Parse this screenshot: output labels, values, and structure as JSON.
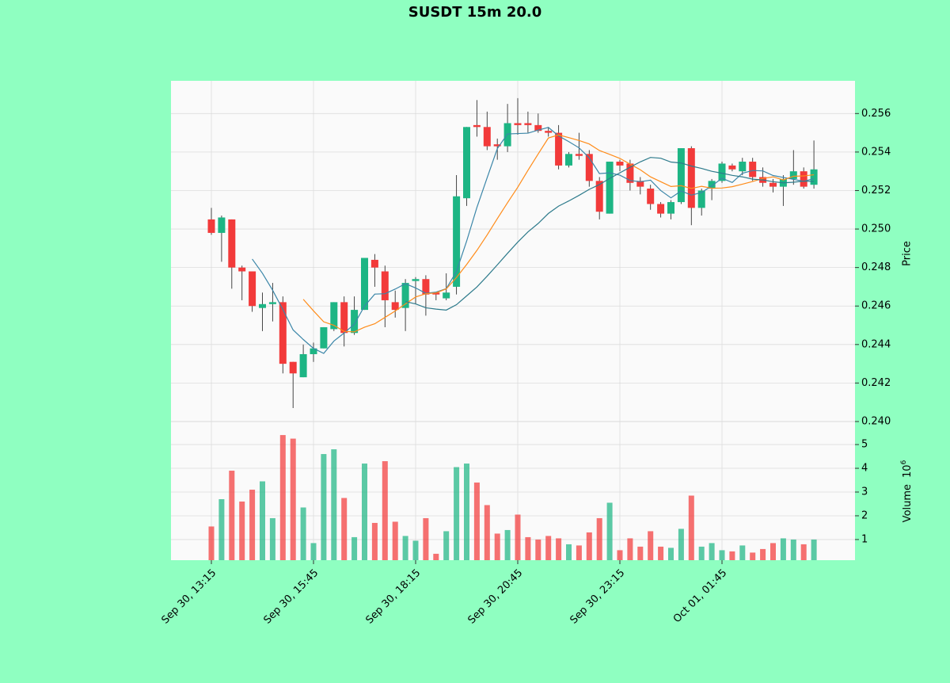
{
  "chart_data": {
    "type": "candlestick",
    "title": "SUSDT 15m 20.0",
    "ylabel": "Price",
    "grid": true,
    "up_color": "#1db584",
    "down_color": "#f23a3a",
    "categories": [
      "Sep 30, 13:15",
      null,
      null,
      null,
      null,
      null,
      null,
      null,
      null,
      null,
      "Sep 30, 15:45",
      null,
      null,
      null,
      null,
      null,
      null,
      null,
      null,
      null,
      "Sep 30, 18:15",
      null,
      null,
      null,
      null,
      null,
      null,
      null,
      null,
      null,
      "Sep 30, 20:45",
      null,
      null,
      null,
      null,
      null,
      null,
      null,
      null,
      null,
      "Sep 30, 23:15",
      null,
      null,
      null,
      null,
      null,
      null,
      null,
      null,
      null,
      "Oct 01, 01:45",
      null,
      null,
      null,
      null,
      null,
      null,
      null,
      null,
      null
    ],
    "open": [
      0.2505,
      0.2498,
      0.2505,
      0.248,
      0.2478,
      0.2459,
      0.2461,
      0.2462,
      0.2431,
      0.2423,
      0.2435,
      0.2438,
      0.2448,
      0.2462,
      0.2446,
      0.2458,
      0.2484,
      0.2478,
      0.2462,
      0.2459,
      0.2473,
      0.2474,
      0.2467,
      0.2464,
      0.247,
      0.2516,
      0.2554,
      0.2553,
      0.2544,
      0.2543,
      0.2555,
      0.2555,
      0.2554,
      0.2551,
      0.255,
      0.2533,
      0.2539,
      0.2539,
      0.2525,
      0.2508,
      0.2535,
      0.2534,
      0.2525,
      0.2521,
      0.2513,
      0.2508,
      0.2514,
      0.2542,
      0.2511,
      0.2521,
      0.2525,
      0.2533,
      0.253,
      0.2535,
      0.2527,
      0.2524,
      0.2522,
      0.2526,
      0.253,
      0.2523
    ],
    "high": [
      0.2511,
      0.2507,
      0.2505,
      0.2481,
      0.2478,
      0.2467,
      0.2472,
      0.2465,
      0.2431,
      0.244,
      0.2441,
      0.2449,
      0.2462,
      0.2465,
      0.2465,
      0.2485,
      0.2487,
      0.2481,
      0.2468,
      0.2474,
      0.2475,
      0.2476,
      0.2467,
      0.2477,
      0.2528,
      0.2553,
      0.2567,
      0.2561,
      0.2547,
      0.2565,
      0.2568,
      0.2561,
      0.256,
      0.2553,
      0.2554,
      0.254,
      0.255,
      0.2541,
      0.2527,
      0.2535,
      0.2536,
      0.2536,
      0.2527,
      0.2523,
      0.2514,
      0.2515,
      0.2542,
      0.2543,
      0.2521,
      0.2526,
      0.2535,
      0.2534,
      0.2537,
      0.2537,
      0.2532,
      0.2526,
      0.2528,
      0.2541,
      0.2532,
      0.2546
    ],
    "low": [
      0.2497,
      0.2483,
      0.2469,
      0.2463,
      0.2457,
      0.2447,
      0.2452,
      0.2425,
      0.2407,
      0.2423,
      0.2431,
      0.2438,
      0.2447,
      0.2439,
      0.2445,
      0.2458,
      0.247,
      0.2449,
      0.2454,
      0.2447,
      0.2461,
      0.2455,
      0.2463,
      0.2463,
      0.2466,
      0.2512,
      0.2548,
      0.2541,
      0.2536,
      0.254,
      0.2549,
      0.255,
      0.255,
      0.2548,
      0.2531,
      0.2532,
      0.2536,
      0.2522,
      0.2505,
      0.2508,
      0.253,
      0.252,
      0.2518,
      0.251,
      0.2506,
      0.2505,
      0.2513,
      0.2502,
      0.2507,
      0.2515,
      0.2524,
      0.253,
      0.2528,
      0.2525,
      0.2522,
      0.2519,
      0.2512,
      0.2523,
      0.2521,
      0.2521
    ],
    "close": [
      0.2498,
      0.2506,
      0.248,
      0.2478,
      0.246,
      0.2461,
      0.2462,
      0.243,
      0.2425,
      0.2435,
      0.2438,
      0.2449,
      0.2462,
      0.2446,
      0.2458,
      0.2485,
      0.248,
      0.2463,
      0.2458,
      0.2472,
      0.2474,
      0.2466,
      0.2466,
      0.2467,
      0.2517,
      0.2553,
      0.2553,
      0.2543,
      0.2543,
      0.2555,
      0.2554,
      0.2554,
      0.2551,
      0.255,
      0.2533,
      0.2539,
      0.2538,
      0.2525,
      0.2509,
      0.2535,
      0.2533,
      0.2524,
      0.2522,
      0.2513,
      0.2508,
      0.2514,
      0.2542,
      0.2511,
      0.252,
      0.2525,
      0.2534,
      0.2531,
      0.2535,
      0.2527,
      0.2524,
      0.2522,
      0.2526,
      0.253,
      0.2522,
      0.2531
    ],
    "moving_averages": [
      {
        "color": "#3b86a8",
        "values": [
          null,
          null,
          null,
          null,
          0.24844,
          0.2477,
          0.24682,
          0.24582,
          0.24476,
          0.24426,
          0.2438,
          0.24354,
          0.24418,
          0.2446,
          0.24506,
          0.246,
          0.24662,
          0.24664,
          0.24688,
          0.24716,
          0.24694,
          0.24666,
          0.24672,
          0.2469,
          0.2478,
          0.24938,
          0.25112,
          0.25266,
          0.25418,
          0.25494,
          0.25496,
          0.25498,
          0.25514,
          0.25528,
          0.25484,
          0.25454,
          0.25422,
          0.2537,
          0.25288,
          0.25292,
          0.2528,
          0.25252,
          0.25246,
          0.25254,
          0.252,
          0.25162,
          0.25198,
          0.25176,
          0.2519,
          0.25224,
          0.25264,
          0.25242,
          0.2529,
          0.25304,
          0.25302,
          0.25278,
          0.25268,
          0.25258,
          0.25248,
          0.25262
        ]
      },
      {
        "color": "#ff8c1a",
        "values": [
          null,
          null,
          null,
          null,
          null,
          null,
          null,
          null,
          null,
          0.24635,
          0.24575,
          0.24518,
          0.245,
          0.24468,
          0.24466,
          0.2449,
          0.24508,
          0.24541,
          0.24574,
          0.24611,
          0.24647,
          0.24664,
          0.24668,
          0.24689,
          0.24748,
          0.24816,
          0.24889,
          0.24969,
          0.25054,
          0.25137,
          0.25217,
          0.25305,
          0.2539,
          0.25473,
          0.25489,
          0.25475,
          0.2546,
          0.25442,
          0.25408,
          0.25388,
          0.25367,
          0.25337,
          0.25308,
          0.25271,
          0.25246,
          0.25221,
          0.25225,
          0.25211,
          0.25222,
          0.25212,
          0.25213,
          0.2522,
          0.25233,
          0.25247,
          0.25263,
          0.25271,
          0.25255,
          0.25274,
          0.25276,
          0.25282
        ]
      },
      {
        "color": "#2e7b8c",
        "values": [
          null,
          null,
          null,
          null,
          null,
          null,
          null,
          null,
          null,
          null,
          null,
          null,
          null,
          null,
          null,
          null,
          null,
          null,
          null,
          0.24623,
          0.24611,
          0.24591,
          0.24584,
          0.24579,
          0.24607,
          0.24653,
          0.24699,
          0.24755,
          0.24814,
          0.24874,
          0.24932,
          0.24985,
          0.25029,
          0.25081,
          0.25119,
          0.25146,
          0.25175,
          0.25206,
          0.25231,
          0.25263,
          0.25292,
          0.25321,
          0.25349,
          0.25372,
          0.25368,
          0.25348,
          0.25343,
          0.25327,
          0.25315,
          0.253,
          0.2529,
          0.25279,
          0.25271,
          0.25259,
          0.25255,
          0.25246,
          0.2524,
          0.25243,
          0.25249,
          0.25247
        ]
      }
    ],
    "ylim": [
      0.24,
      0.2577
    ],
    "yticks": [
      {
        "value": 0.24,
        "label": "0.240"
      },
      0.242,
      0.244,
      0.246,
      0.248,
      {
        "value": 0.25,
        "label": "0.250"
      },
      0.252,
      0.254,
      0.256
    ],
    "volume": {
      "ylabel": "Volume",
      "scale_base": "10",
      "scale_exponent": "6",
      "values": [
        1.55,
        2.7,
        3.9,
        2.6,
        3.1,
        3.45,
        1.9,
        5.4,
        5.25,
        2.35,
        0.85,
        4.6,
        4.8,
        2.75,
        1.1,
        4.2,
        1.7,
        4.3,
        1.75,
        1.15,
        0.95,
        1.9,
        0.4,
        1.35,
        4.05,
        4.2,
        3.4,
        2.45,
        1.25,
        1.4,
        2.05,
        1.1,
        1.0,
        1.15,
        1.05,
        0.8,
        0.75,
        1.3,
        1.9,
        2.55,
        0.55,
        1.05,
        0.7,
        1.35,
        0.7,
        0.65,
        1.45,
        2.85,
        0.7,
        0.85,
        0.55,
        0.5,
        0.75,
        0.45,
        0.6,
        0.85,
        1.05,
        1.0,
        0.8,
        1.0
      ],
      "ylim": [
        0.13,
        5.97
      ],
      "yticks": [
        1,
        2,
        3,
        4,
        5
      ]
    }
  }
}
